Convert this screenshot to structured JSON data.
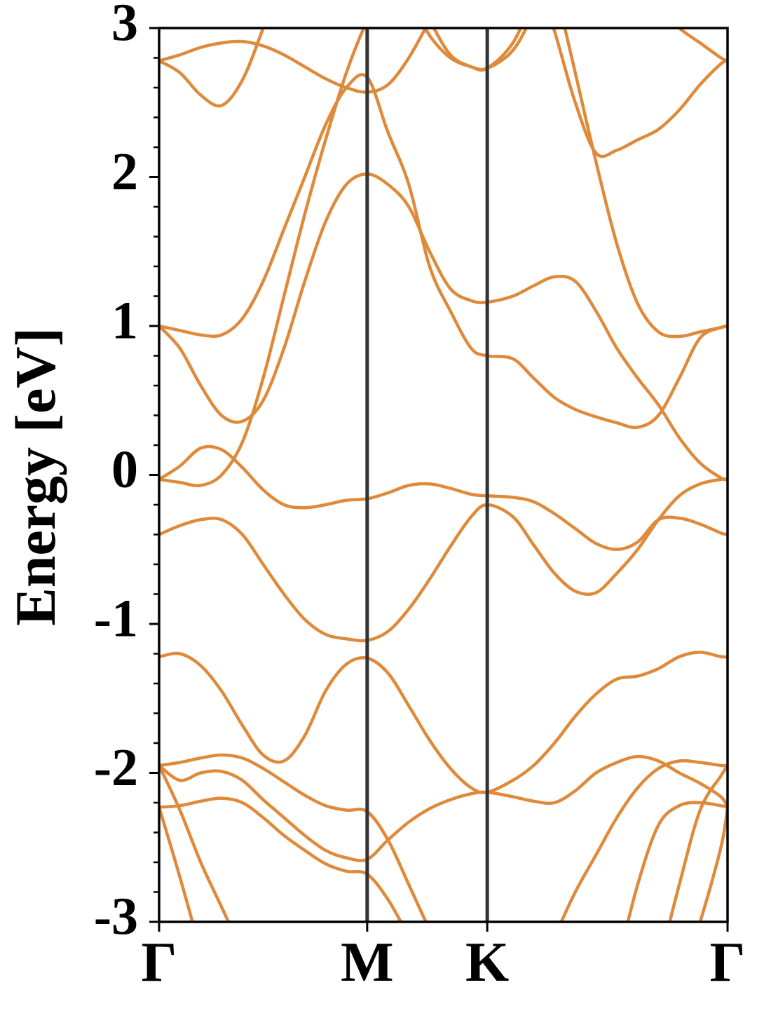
{
  "chart_data": {
    "type": "line",
    "y_label": "Energy [eV]",
    "x": [
      0,
      0.1,
      0.2,
      0.3,
      0.4,
      0.5,
      0.6,
      0.7,
      0.8,
      0.9,
      1.0,
      1.1,
      1.2,
      1.3,
      1.4,
      1.5,
      1.577,
      1.7,
      1.8,
      1.9,
      2.0,
      2.1,
      2.2,
      2.3,
      2.4,
      2.5,
      2.6,
      2.7,
      2.732
    ],
    "xlim": [
      0,
      2.732
    ],
    "xticks": [
      {
        "value": 0,
        "label": "Γ"
      },
      {
        "value": 1.0,
        "label": "M"
      },
      {
        "value": 1.577,
        "label": "K"
      },
      {
        "value": 2.732,
        "label": "Γ"
      }
    ],
    "xtick_lines": true,
    "ylim": [
      -3,
      3
    ],
    "yticks": [
      -3,
      -2,
      -1,
      0,
      1,
      2,
      3
    ],
    "yminorticks": [
      -2.8,
      -2.6,
      -2.4,
      -2.2,
      -1.8,
      -1.6,
      -1.4,
      -1.2,
      -0.8,
      -0.6,
      -0.4,
      -0.2,
      0.2,
      0.4,
      0.6,
      0.8,
      1.2,
      1.4,
      1.6,
      1.8,
      2.2,
      2.4,
      2.6,
      2.8
    ],
    "series": [
      {
        "color": "#df8a3a",
        "values": [
          -0.4,
          -0.34,
          -0.3,
          -0.3,
          -0.4,
          -0.6,
          -0.8,
          -0.97,
          -1.07,
          -1.1,
          -1.11,
          -1.05,
          -0.9,
          -0.7,
          -0.48,
          -0.28,
          -0.2,
          -0.28,
          -0.47,
          -0.66,
          -0.78,
          -0.79,
          -0.66,
          -0.5,
          -0.3,
          -0.14,
          -0.06,
          -0.03,
          -0.03
        ]
      },
      {
        "color": "#df8a3a",
        "values": [
          -0.03,
          0.06,
          0.18,
          0.17,
          0.05,
          -0.1,
          -0.2,
          -0.22,
          -0.2,
          -0.17,
          -0.16,
          -0.12,
          -0.07,
          -0.06,
          -0.09,
          -0.13,
          -0.14,
          -0.15,
          -0.18,
          -0.26,
          -0.36,
          -0.46,
          -0.5,
          -0.45,
          -0.3,
          -0.29,
          -0.33,
          -0.39,
          -0.4
        ]
      },
      {
        "color": "#df8a3a",
        "values": [
          -0.03,
          -0.05,
          -0.07,
          0.0,
          0.22,
          0.65,
          1.2,
          1.75,
          2.25,
          2.7,
          3.05,
          3.3,
          3.2,
          2.95,
          2.8,
          2.74,
          2.73,
          2.85,
          3.1,
          3.4,
          null,
          null,
          null,
          null,
          null,
          null,
          null,
          null,
          null
        ]
      },
      {
        "color": "#df8a3a",
        "values": [
          1.0,
          0.85,
          0.6,
          0.4,
          0.36,
          0.5,
          0.85,
          1.3,
          1.7,
          1.95,
          2.02,
          1.95,
          1.8,
          1.5,
          1.25,
          1.17,
          1.16,
          1.2,
          1.27,
          1.33,
          1.3,
          1.1,
          0.85,
          0.65,
          0.47,
          0.25,
          0.08,
          -0.02,
          -0.03
        ]
      },
      {
        "color": "#df8a3a",
        "values": [
          1.0,
          0.97,
          0.94,
          0.94,
          1.05,
          1.3,
          1.65,
          2.0,
          2.35,
          2.6,
          2.67,
          2.3,
          1.95,
          1.4,
          1.1,
          0.85,
          0.8,
          0.78,
          0.65,
          0.52,
          0.44,
          0.39,
          0.35,
          0.32,
          0.4,
          0.65,
          0.92,
          0.99,
          1.0
        ]
      },
      {
        "color": "#df8a3a",
        "values": [
          2.78,
          2.7,
          2.55,
          2.48,
          2.65,
          3.0,
          3.4,
          null,
          null,
          null,
          null,
          null,
          null,
          null,
          null,
          null,
          null,
          null,
          null,
          null,
          null,
          null,
          null,
          null,
          null,
          null,
          null,
          null,
          null
        ]
      },
      {
        "color": "#df8a3a",
        "values": [
          2.78,
          2.82,
          2.87,
          2.9,
          2.91,
          2.88,
          2.82,
          2.74,
          2.66,
          2.6,
          2.57,
          2.62,
          2.8,
          3.05,
          3.3,
          null,
          null,
          null,
          null,
          null,
          null,
          null,
          null,
          null,
          null,
          null,
          null,
          null,
          null
        ]
      },
      {
        "color": "#df8a3a",
        "values": [
          null,
          null,
          null,
          null,
          null,
          null,
          null,
          null,
          null,
          null,
          null,
          null,
          3.3,
          3.05,
          2.82,
          2.74,
          2.73,
          2.9,
          3.2,
          null,
          null,
          null,
          null,
          null,
          null,
          null,
          null,
          null,
          null
        ]
      },
      {
        "color": "#df8a3a",
        "values": [
          null,
          null,
          null,
          null,
          null,
          null,
          null,
          null,
          null,
          null,
          null,
          null,
          null,
          null,
          null,
          null,
          null,
          null,
          3.4,
          2.98,
          2.5,
          2.16,
          2.18,
          2.25,
          2.32,
          2.45,
          2.62,
          2.76,
          2.78
        ]
      },
      {
        "color": "#df8a3a",
        "values": [
          null,
          null,
          null,
          null,
          null,
          null,
          null,
          null,
          null,
          null,
          null,
          null,
          null,
          null,
          null,
          null,
          null,
          null,
          null,
          3.3,
          2.7,
          2.1,
          1.55,
          1.15,
          0.96,
          0.93,
          0.96,
          0.99,
          1.0
        ]
      },
      {
        "color": "#df8a3a",
        "values": [
          null,
          null,
          null,
          null,
          null,
          null,
          null,
          null,
          null,
          null,
          null,
          null,
          null,
          null,
          null,
          null,
          null,
          null,
          null,
          null,
          null,
          null,
          null,
          null,
          3.15,
          3.0,
          2.9,
          2.8,
          2.78
        ]
      },
      {
        "color": "#df8a3a",
        "values": [
          -1.22,
          -1.2,
          -1.28,
          -1.45,
          -1.68,
          -1.88,
          -1.92,
          -1.75,
          -1.45,
          -1.27,
          -1.23,
          -1.33,
          -1.55,
          -1.78,
          -1.97,
          -2.1,
          -2.13,
          -2.05,
          -1.95,
          -1.8,
          -1.62,
          -1.47,
          -1.37,
          -1.35,
          -1.3,
          -1.22,
          -1.19,
          -1.22,
          -1.22
        ]
      },
      {
        "color": "#df8a3a",
        "values": [
          -1.95,
          -1.93,
          -1.9,
          -1.88,
          -1.9,
          -1.97,
          -2.06,
          -2.15,
          -2.22,
          -2.25,
          -2.26,
          -2.45,
          -2.75,
          -3.05,
          -3.3,
          null,
          null,
          null,
          null,
          null,
          null,
          null,
          null,
          null,
          null,
          null,
          null,
          null,
          null
        ]
      },
      {
        "color": "#df8a3a",
        "values": [
          -1.95,
          -2.05,
          -2.0,
          -1.99,
          -2.05,
          -2.18,
          -2.3,
          -2.42,
          -2.52,
          -2.57,
          -2.58,
          -2.45,
          -2.33,
          -2.24,
          -2.18,
          -2.14,
          -2.13,
          -2.16,
          -2.19,
          -2.2,
          -2.12,
          -2.0,
          -1.93,
          -1.89,
          -1.92,
          -2.0,
          -2.07,
          -2.16,
          -2.23
        ]
      },
      {
        "color": "#df8a3a",
        "values": [
          -2.23,
          -2.22,
          -2.19,
          -2.17,
          -2.2,
          -2.3,
          -2.42,
          -2.52,
          -2.61,
          -2.66,
          -2.68,
          -2.85,
          -3.1,
          null,
          null,
          null,
          null,
          null,
          null,
          null,
          null,
          null,
          null,
          null,
          null,
          null,
          null,
          null,
          null
        ]
      },
      {
        "color": "#df8a3a",
        "values": [
          -1.95,
          -2.25,
          -2.6,
          -2.9,
          -3.2,
          null,
          null,
          null,
          null,
          null,
          null,
          null,
          null,
          null,
          null,
          null,
          null,
          null,
          null,
          null,
          null,
          null,
          null,
          null,
          null,
          null,
          null,
          null,
          null
        ]
      },
      {
        "color": "#df8a3a",
        "values": [
          -2.23,
          -2.7,
          -3.2,
          null,
          null,
          null,
          null,
          null,
          null,
          null,
          null,
          null,
          null,
          null,
          null,
          null,
          null,
          null,
          null,
          null,
          null,
          null,
          null,
          null,
          null,
          null,
          null,
          null,
          null
        ]
      },
      {
        "color": "#df8a3a",
        "values": [
          null,
          null,
          null,
          null,
          null,
          null,
          null,
          null,
          null,
          null,
          null,
          null,
          null,
          null,
          null,
          null,
          null,
          null,
          -3.4,
          -3.1,
          -2.8,
          -2.55,
          -2.3,
          -2.1,
          -1.97,
          -1.92,
          -1.93,
          -1.95,
          -1.95
        ]
      },
      {
        "color": "#df8a3a",
        "values": [
          null,
          null,
          null,
          null,
          null,
          null,
          null,
          null,
          null,
          null,
          null,
          null,
          null,
          null,
          null,
          null,
          null,
          null,
          null,
          null,
          null,
          null,
          -3.3,
          -2.75,
          -2.35,
          -2.22,
          -2.2,
          -2.22,
          -2.23
        ]
      },
      {
        "color": "#df8a3a",
        "values": [
          null,
          null,
          null,
          null,
          null,
          null,
          null,
          null,
          null,
          null,
          null,
          null,
          null,
          null,
          null,
          null,
          null,
          null,
          null,
          null,
          null,
          null,
          null,
          null,
          -3.3,
          -2.75,
          -2.25,
          -2.02,
          -1.95
        ]
      },
      {
        "color": "#df8a3a",
        "values": [
          null,
          null,
          null,
          null,
          null,
          null,
          null,
          null,
          null,
          null,
          null,
          null,
          null,
          null,
          null,
          null,
          null,
          null,
          null,
          null,
          null,
          null,
          null,
          null,
          null,
          -3.4,
          -3.0,
          -2.5,
          -2.23
        ]
      }
    ]
  }
}
